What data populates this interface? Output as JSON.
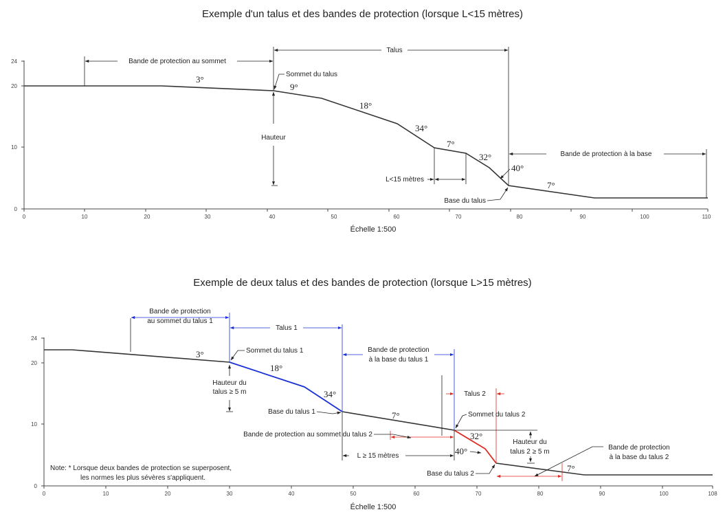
{
  "diagram1": {
    "title": "Exemple d'un talus et des bandes de protection (lorsque L<15 mètres)",
    "scale": "Échelle 1:500",
    "y_ticks": [
      "0",
      "10",
      "20",
      "24"
    ],
    "x_ticks": [
      "0",
      "10",
      "20",
      "30",
      "40",
      "50",
      "60",
      "70",
      "80",
      "90",
      "100",
      "110"
    ],
    "angles": [
      "3°",
      "9°",
      "18°",
      "34°",
      "7°",
      "32°",
      "40°",
      "7°"
    ],
    "labels": {
      "bande_sommet": "Bande de protection au sommet",
      "talus": "Talus",
      "sommet": "Sommet du talus",
      "hauteur": "Hauteur",
      "l_lt_15": "L<15 mètres",
      "base": "Base du talus",
      "bande_base": "Bande de protection à la base"
    }
  },
  "diagram2": {
    "title": "Exemple de deux talus et des bandes de protection (lorsque L>15 mètres)",
    "scale": "Échelle 1:500",
    "y_ticks": [
      "0",
      "10",
      "20",
      "24"
    ],
    "x_ticks": [
      "0",
      "10",
      "20",
      "30",
      "40",
      "50",
      "60",
      "70",
      "80",
      "90",
      "100",
      "108"
    ],
    "angles": [
      "3°",
      "18°",
      "34°",
      "7°",
      "32°",
      "40°",
      "7°"
    ],
    "labels": {
      "bande_sommet1_a": "Bande de protection",
      "bande_sommet1_b": "au sommet du talus 1",
      "talus1": "Talus 1",
      "sommet1": "Sommet du talus 1",
      "bande_base1_a": "Bande de protection",
      "bande_base1_b": "à la base du talus 1",
      "hauteur1_a": "Hauteur du",
      "hauteur1_b": "talus ≥ 5 m",
      "talus2": "Talus 2",
      "base1": "Base du talus 1",
      "sommet2": "Sommet du talus 2",
      "bande_sommet2": "Bande de protection au sommet du talus 2",
      "hauteur2_a": "Hauteur du",
      "hauteur2_b": "talus 2 ≥ 5 m",
      "bande_base2_a": "Bande de protection",
      "bande_base2_b": "à la base du talus 2",
      "l_gt_15": "L ≥ 15 mètres",
      "base2": "Base du talus 2",
      "note_a": "Note: * Lorsque deux bandes de protection se superposent,",
      "note_b": "les normes les plus sévères s'appliquent."
    }
  },
  "colors": {
    "profile": "#333333",
    "talus1": "#1a2fd6",
    "talus2": "#e0281f"
  }
}
